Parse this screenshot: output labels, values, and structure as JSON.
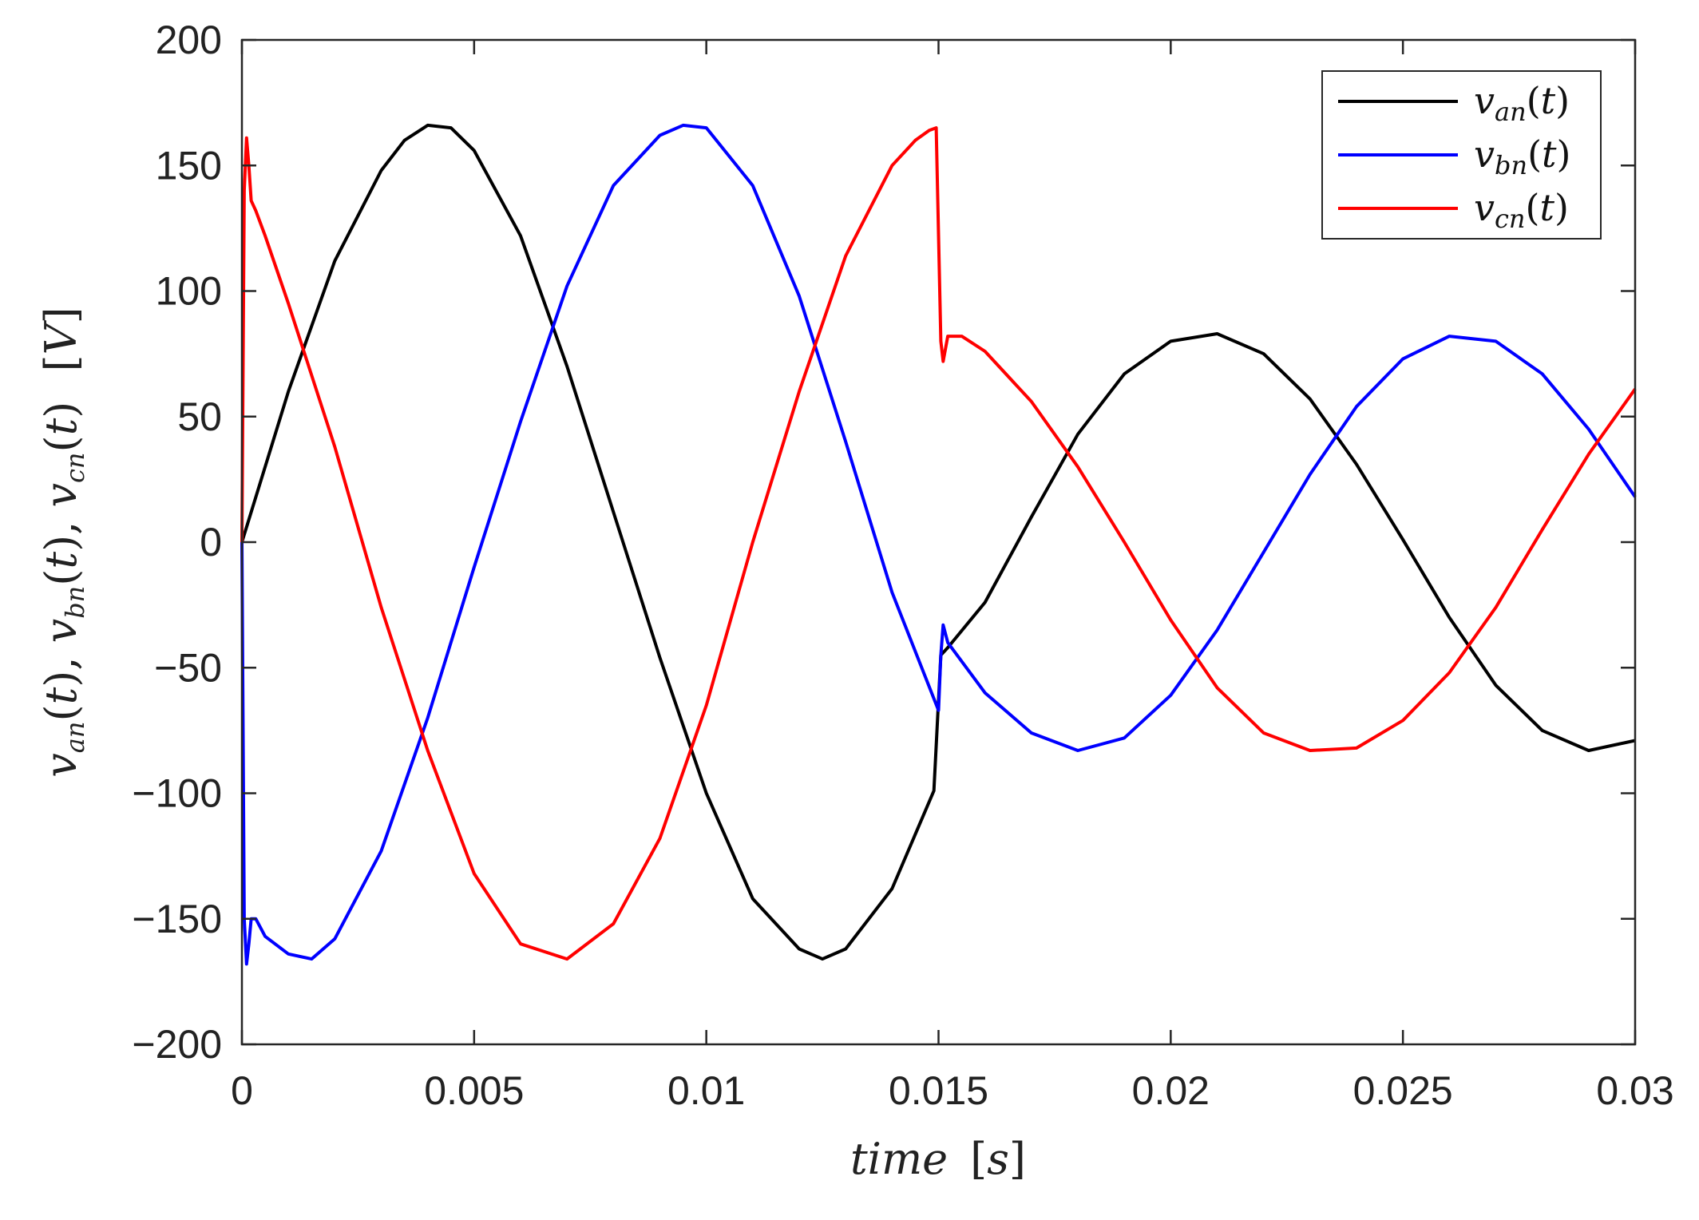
{
  "chart_data": {
    "type": "line",
    "xlabel": "time [s]",
    "ylabel": "v_an(t), v_bn(t), v_cn(t) [V]",
    "xlim": [
      0,
      0.03
    ],
    "ylim": [
      -200,
      200
    ],
    "x_ticks": [
      0,
      0.005,
      0.01,
      0.015,
      0.02,
      0.025,
      0.03
    ],
    "x_tick_labels": [
      "0",
      "0.005",
      "0.01",
      "0.015",
      "0.02",
      "0.025",
      "0.03"
    ],
    "y_ticks": [
      -200,
      -150,
      -100,
      -50,
      0,
      50,
      100,
      150,
      200
    ],
    "y_tick_labels": [
      "−200",
      "−150",
      "−100",
      "−50",
      "0",
      "50",
      "100",
      "150",
      "200"
    ],
    "grid": false,
    "legend_position": "top-right",
    "series": [
      {
        "name": "v_an(t)",
        "color": "#000000",
        "x": [
          0,
          0.001,
          0.002,
          0.003,
          0.0035,
          0.004,
          0.0045,
          0.005,
          0.006,
          0.007,
          0.008,
          0.009,
          0.01,
          0.011,
          0.012,
          0.0125,
          0.013,
          0.014,
          0.0149,
          0.01505,
          0.0152,
          0.016,
          0.017,
          0.018,
          0.019,
          0.02,
          0.021,
          0.022,
          0.023,
          0.024,
          0.025,
          0.026,
          0.027,
          0.028,
          0.029,
          0.03
        ],
        "y": [
          0,
          60,
          112,
          148,
          160,
          166,
          165,
          156,
          122,
          70,
          12,
          -46,
          -100,
          -142,
          -162,
          -166,
          -162,
          -138,
          -99,
          -45,
          -42,
          -24,
          10,
          43,
          67,
          80,
          83,
          75,
          57,
          31,
          1,
          -30,
          -57,
          -75,
          -83,
          -79
        ]
      },
      {
        "name": "v_bn(t)",
        "color": "#0000ff",
        "x": [
          0,
          5e-05,
          0.0001,
          0.00015,
          0.0002,
          0.0003,
          0.0005,
          0.001,
          0.0015,
          0.002,
          0.003,
          0.004,
          0.005,
          0.006,
          0.007,
          0.008,
          0.009,
          0.0095,
          0.01,
          0.011,
          0.012,
          0.013,
          0.014,
          0.015,
          0.01505,
          0.0151,
          0.0152,
          0.016,
          0.017,
          0.018,
          0.019,
          0.02,
          0.021,
          0.022,
          0.023,
          0.024,
          0.025,
          0.026,
          0.027,
          0.028,
          0.029,
          0.03
        ],
        "y": [
          0,
          -150,
          -168,
          -160,
          -150,
          -150,
          -157,
          -164,
          -166,
          -158,
          -123,
          -70,
          -10,
          48,
          102,
          142,
          162,
          166,
          165,
          142,
          98,
          40,
          -20,
          -67,
          -45,
          -33,
          -40,
          -60,
          -76,
          -83,
          -78,
          -61,
          -35,
          -4,
          27,
          54,
          73,
          82,
          80,
          67,
          45,
          18
        ]
      },
      {
        "name": "v_cn(t)",
        "color": "#ff0000",
        "x": [
          0,
          5e-05,
          0.0001,
          0.00015,
          0.0002,
          0.0003,
          0.0005,
          0.001,
          0.002,
          0.003,
          0.004,
          0.005,
          0.006,
          0.007,
          0.008,
          0.009,
          0.01,
          0.011,
          0.012,
          0.013,
          0.014,
          0.0145,
          0.0148,
          0.01495,
          0.01505,
          0.0151,
          0.0152,
          0.0155,
          0.016,
          0.017,
          0.018,
          0.019,
          0.02,
          0.021,
          0.022,
          0.023,
          0.024,
          0.025,
          0.026,
          0.027,
          0.028,
          0.029,
          0.03
        ],
        "y": [
          0,
          140,
          161,
          150,
          136,
          132,
          122,
          95,
          38,
          -26,
          -83,
          -132,
          -160,
          -166,
          -152,
          -118,
          -65,
          0,
          60,
          114,
          150,
          160,
          164,
          165,
          80,
          72,
          82,
          82,
          76,
          56,
          30,
          0,
          -31,
          -58,
          -76,
          -83,
          -82,
          -71,
          -52,
          -26,
          5,
          35,
          61
        ]
      }
    ]
  }
}
